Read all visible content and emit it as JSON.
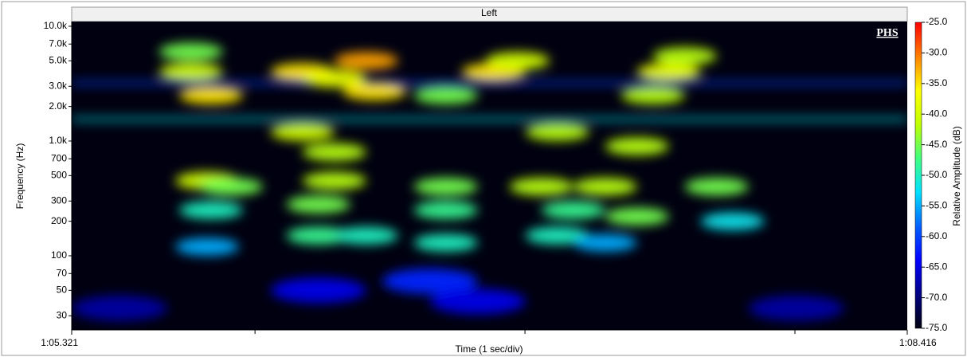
{
  "chart_data": {
    "type": "spectrogram",
    "title": "Left",
    "badge": "PHS",
    "xlabel": "Time (1 sec/div)",
    "ylabel": "Frequency (Hz)",
    "colorbar_label": "Relative Amplitude (dB)",
    "xlim": [
      65.321,
      68.416
    ],
    "xticks": [
      {
        "value": 65.321,
        "label": "1:05.321"
      },
      {
        "value": 68.416,
        "label": "1:08.416"
      }
    ],
    "x_minor_ticks": [
      66,
      67,
      68
    ],
    "ylim": [
      22.6,
      11000
    ],
    "yscale": "log",
    "yticks": [
      {
        "value": 10000,
        "label": "10.0k"
      },
      {
        "value": 7000,
        "label": "7.0k"
      },
      {
        "value": 5000,
        "label": "5.0k"
      },
      {
        "value": 3000,
        "label": "3.0k"
      },
      {
        "value": 2000,
        "label": "2.0k"
      },
      {
        "value": 1000,
        "label": "1.0k"
      },
      700,
      500,
      300,
      200,
      100,
      70,
      50,
      30
    ],
    "clim": [
      -75,
      -25
    ],
    "cticks": [
      {
        "value": -25,
        "label": "-25.0"
      },
      {
        "value": -30,
        "label": "-30.0"
      },
      {
        "value": -35,
        "label": "-35.0"
      },
      {
        "value": -40,
        "label": "-40.0"
      },
      {
        "value": -45,
        "label": "-45.0"
      },
      {
        "value": -50,
        "label": "-50.0"
      },
      {
        "value": -55,
        "label": "-55.0"
      },
      {
        "value": -60,
        "label": "-60.0"
      },
      {
        "value": -65,
        "label": "-65.0"
      },
      {
        "value": -70,
        "label": "-70.0"
      },
      {
        "value": -75,
        "label": "-75.0"
      }
    ],
    "colormap": [
      "#000010",
      "#000080",
      "#0000ff",
      "#0060ff",
      "#00e0ff",
      "#40ff80",
      "#c0ff00",
      "#ffff00",
      "#ff8000",
      "#ff0000"
    ],
    "steady_tones": [
      {
        "frequency": 1550,
        "value": -52
      },
      {
        "frequency": 3200,
        "value": -60
      }
    ],
    "x": [
      65.763,
      65.763,
      65.837,
      65.823,
      65.911,
      65.837,
      65.823,
      66.176,
      66.294,
      66.412,
      66.442,
      66.176,
      66.294,
      66.294,
      66.235,
      66.235,
      66.412,
      66.707,
      66.707,
      66.707,
      66.707,
      66.884,
      66.973,
      67.061,
      67.179,
      67.297,
      67.415,
      67.12,
      67.297,
      67.12,
      67.415,
      67.533,
      67.592,
      67.474,
      67.71,
      67.769,
      66.235,
      66.648,
      66.825,
      65.498,
      68.005
    ],
    "y": [
      6000,
      4000,
      2500,
      450,
      400,
      250,
      120,
      4000,
      3500,
      5000,
      2700,
      1200,
      800,
      450,
      280,
      150,
      150,
      400,
      250,
      130,
      2500,
      4000,
      5000,
      400,
      250,
      400,
      220,
      150,
      130,
      1200,
      900,
      4000,
      5500,
      2500,
      400,
      200,
      50,
      60,
      40,
      35,
      35
    ],
    "values": [
      -45,
      -40,
      -35,
      -40,
      -45,
      -50,
      -55,
      -35,
      -38,
      -32,
      -35,
      -40,
      -42,
      -42,
      -45,
      -48,
      -50,
      -45,
      -48,
      -50,
      -45,
      -35,
      -40,
      -42,
      -48,
      -42,
      -45,
      -50,
      -55,
      -42,
      -42,
      -38,
      -42,
      -42,
      -45,
      -52,
      -65,
      -62,
      -65,
      -68,
      -68
    ]
  }
}
